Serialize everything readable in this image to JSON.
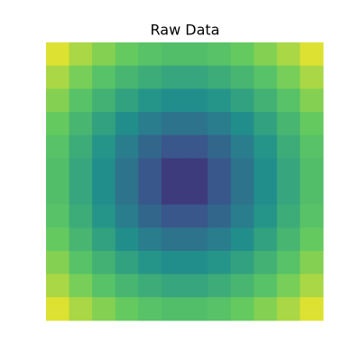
{
  "chart_data": {
    "type": "heatmap",
    "title": "Raw Data",
    "colormap": "viridis",
    "zlim": [
      0,
      1
    ],
    "values": [
      [
        0.95,
        0.87,
        0.81,
        0.76,
        0.72,
        0.7,
        0.7,
        0.72,
        0.76,
        0.81,
        0.87,
        0.95
      ],
      [
        0.87,
        0.79,
        0.72,
        0.66,
        0.62,
        0.59,
        0.59,
        0.62,
        0.66,
        0.72,
        0.79,
        0.87
      ],
      [
        0.81,
        0.72,
        0.64,
        0.57,
        0.52,
        0.49,
        0.49,
        0.52,
        0.57,
        0.64,
        0.72,
        0.81
      ],
      [
        0.76,
        0.66,
        0.57,
        0.49,
        0.42,
        0.38,
        0.38,
        0.42,
        0.49,
        0.57,
        0.66,
        0.76
      ],
      [
        0.72,
        0.62,
        0.52,
        0.42,
        0.33,
        0.27,
        0.27,
        0.33,
        0.42,
        0.52,
        0.62,
        0.72
      ],
      [
        0.7,
        0.59,
        0.49,
        0.38,
        0.27,
        0.18,
        0.18,
        0.27,
        0.38,
        0.49,
        0.59,
        0.7
      ],
      [
        0.7,
        0.59,
        0.49,
        0.38,
        0.27,
        0.18,
        0.18,
        0.27,
        0.38,
        0.49,
        0.59,
        0.7
      ],
      [
        0.72,
        0.62,
        0.52,
        0.42,
        0.33,
        0.27,
        0.27,
        0.33,
        0.42,
        0.52,
        0.62,
        0.72
      ],
      [
        0.76,
        0.66,
        0.57,
        0.49,
        0.42,
        0.38,
        0.38,
        0.42,
        0.49,
        0.57,
        0.66,
        0.76
      ],
      [
        0.81,
        0.72,
        0.64,
        0.57,
        0.52,
        0.49,
        0.49,
        0.52,
        0.57,
        0.64,
        0.72,
        0.81
      ],
      [
        0.87,
        0.79,
        0.72,
        0.66,
        0.62,
        0.59,
        0.59,
        0.62,
        0.66,
        0.72,
        0.79,
        0.87
      ],
      [
        0.95,
        0.87,
        0.81,
        0.76,
        0.72,
        0.7,
        0.7,
        0.72,
        0.76,
        0.81,
        0.87,
        0.95
      ]
    ]
  }
}
